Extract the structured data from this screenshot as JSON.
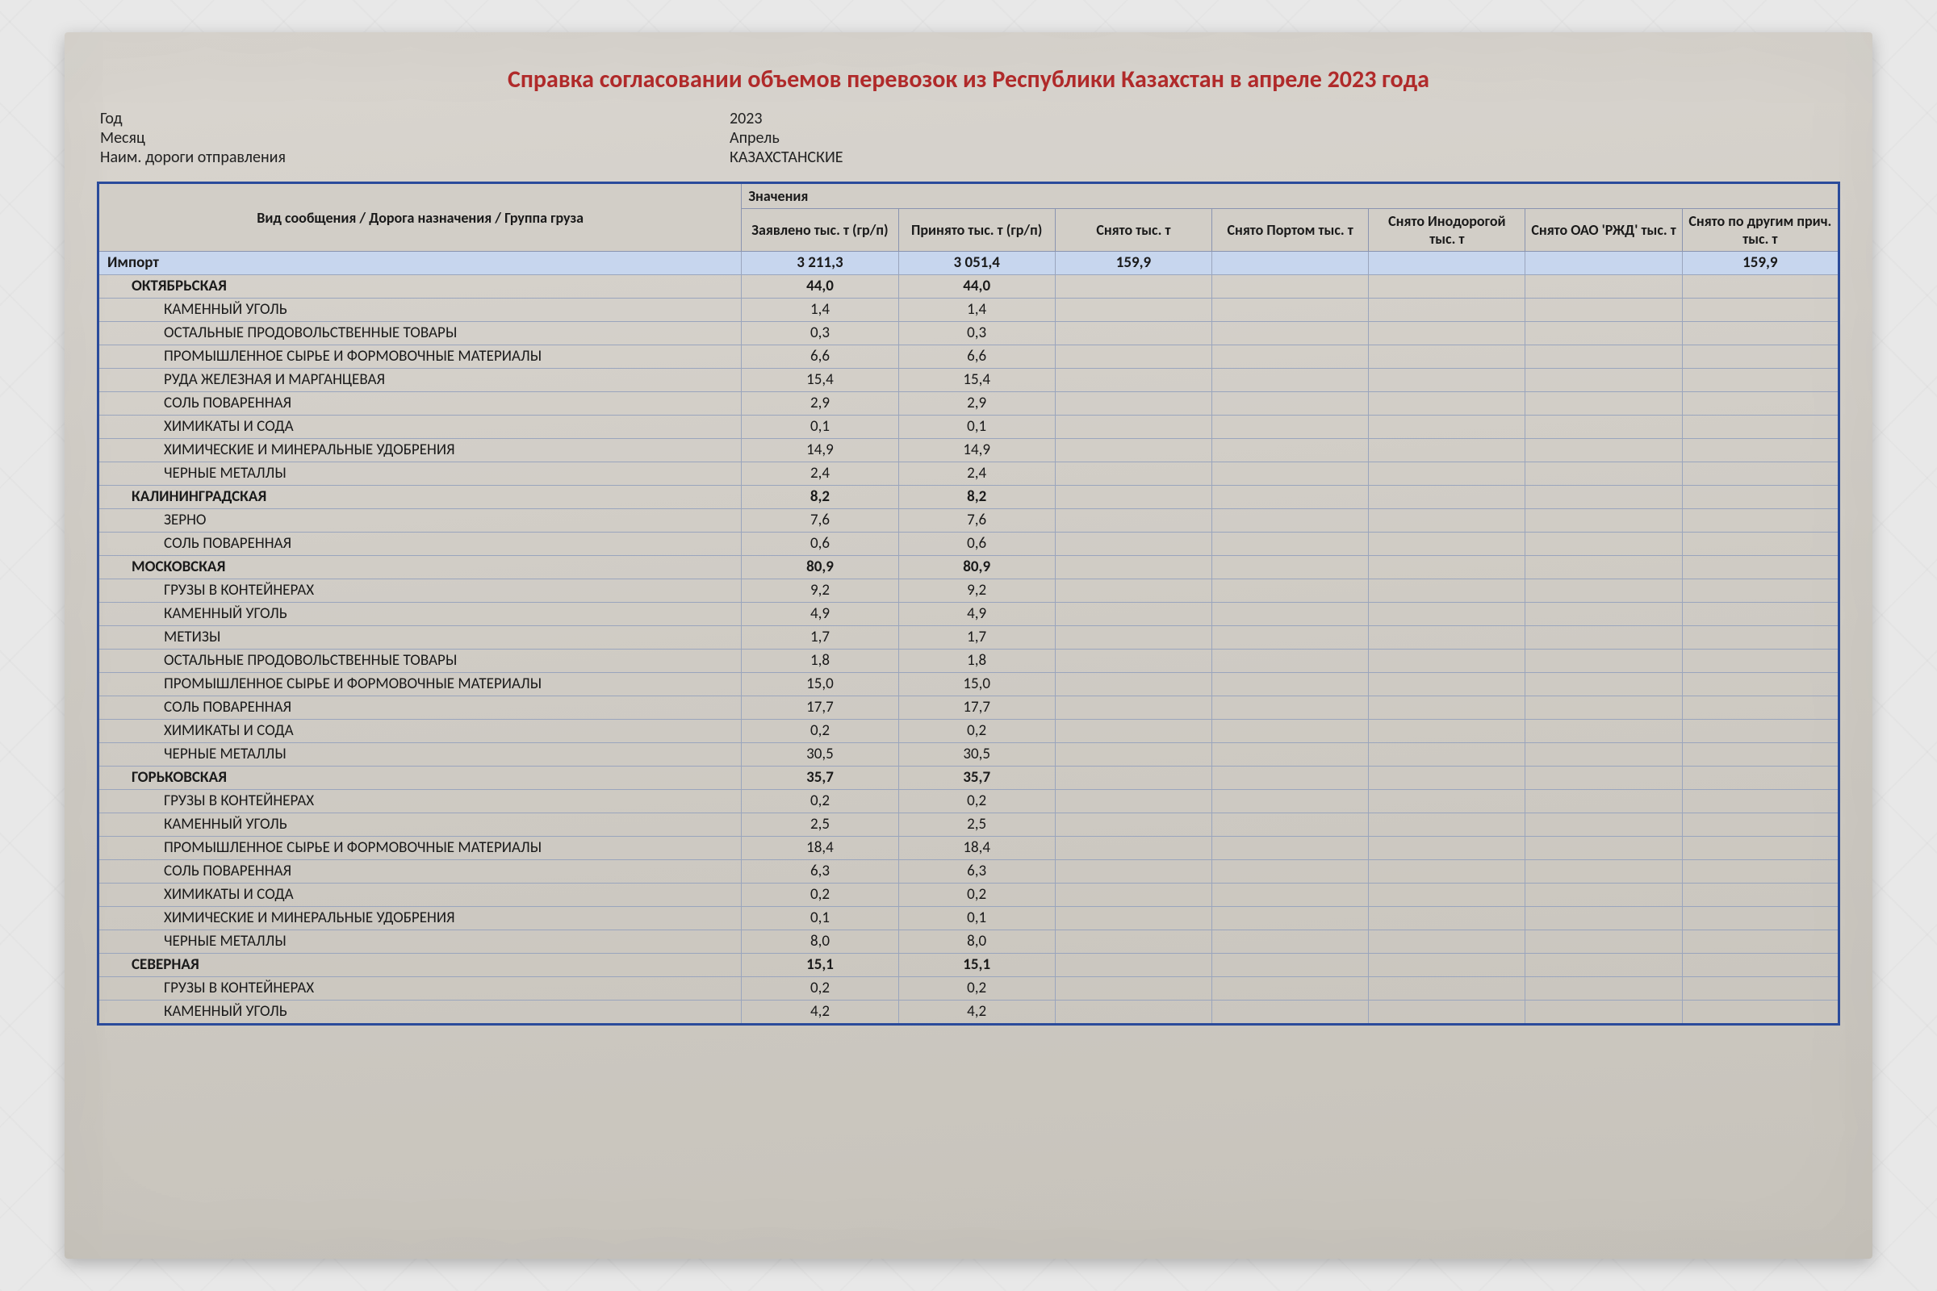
{
  "title": "Справка согласовании объемов перевозок из Республики Казахстан в апреле 2023 года",
  "meta": {
    "year_label": "Год",
    "year_value": "2023",
    "month_label": "Месяц",
    "month_value": "Апрель",
    "road_label": "Наим. дороги отправления",
    "road_value": "КАЗАХСТАНСКИЕ"
  },
  "table": {
    "colors": {
      "border_outer": "#2a4b9b",
      "border_cell": "#9aa5bd",
      "highlight_row_bg": "#c7d6ee",
      "title_color": "#b02a2a",
      "sheet_bg_top": "#d9d5cf",
      "sheet_bg_bottom": "#c7c3bb"
    },
    "header": {
      "row_label": "Вид сообщения / Дорога назначения / Группа груза",
      "values_label": "Значения",
      "cols": [
        "Заявлено тыс. т (гр/п)",
        "Принято тыс. т (гр/п)",
        "Снято тыс. т",
        "Снято Портом тыс. т",
        "Снято Инодорогой тыс. т",
        "Снято ОАО 'РЖД' тыс. т",
        "Снято по другим прич. тыс. т"
      ]
    },
    "rows": [
      {
        "level": 0,
        "name": "Импорт",
        "v": [
          "3 211,3",
          "3 051,4",
          "159,9",
          "",
          "",
          "",
          "159,9"
        ]
      },
      {
        "level": 1,
        "name": "ОКТЯБРЬСКАЯ",
        "v": [
          "44,0",
          "44,0",
          "",
          "",
          "",
          "",
          ""
        ]
      },
      {
        "level": 2,
        "name": "КАМЕННЫЙ УГОЛЬ",
        "v": [
          "1,4",
          "1,4",
          "",
          "",
          "",
          "",
          ""
        ]
      },
      {
        "level": 2,
        "name": "ОСТАЛЬНЫЕ ПРОДОВОЛЬСТВЕННЫЕ ТОВАРЫ",
        "v": [
          "0,3",
          "0,3",
          "",
          "",
          "",
          "",
          ""
        ]
      },
      {
        "level": 2,
        "name": "ПРОМЫШЛЕННОЕ СЫРЬЕ И ФОРМОВОЧНЫЕ МАТЕРИАЛЫ",
        "v": [
          "6,6",
          "6,6",
          "",
          "",
          "",
          "",
          ""
        ]
      },
      {
        "level": 2,
        "name": "РУДА ЖЕЛЕЗНАЯ И МАРГАНЦЕВАЯ",
        "v": [
          "15,4",
          "15,4",
          "",
          "",
          "",
          "",
          ""
        ]
      },
      {
        "level": 2,
        "name": "СОЛЬ ПОВАРЕННАЯ",
        "v": [
          "2,9",
          "2,9",
          "",
          "",
          "",
          "",
          ""
        ]
      },
      {
        "level": 2,
        "name": "ХИМИКАТЫ И СОДА",
        "v": [
          "0,1",
          "0,1",
          "",
          "",
          "",
          "",
          ""
        ]
      },
      {
        "level": 2,
        "name": "ХИМИЧЕСКИЕ И МИНЕРАЛЬНЫЕ УДОБРЕНИЯ",
        "v": [
          "14,9",
          "14,9",
          "",
          "",
          "",
          "",
          ""
        ]
      },
      {
        "level": 2,
        "name": "ЧЕРНЫЕ МЕТАЛЛЫ",
        "v": [
          "2,4",
          "2,4",
          "",
          "",
          "",
          "",
          ""
        ]
      },
      {
        "level": 1,
        "name": "КАЛИНИНГРАДСКАЯ",
        "v": [
          "8,2",
          "8,2",
          "",
          "",
          "",
          "",
          ""
        ]
      },
      {
        "level": 2,
        "name": "ЗЕРНО",
        "v": [
          "7,6",
          "7,6",
          "",
          "",
          "",
          "",
          ""
        ]
      },
      {
        "level": 2,
        "name": "СОЛЬ ПОВАРЕННАЯ",
        "v": [
          "0,6",
          "0,6",
          "",
          "",
          "",
          "",
          ""
        ]
      },
      {
        "level": 1,
        "name": "МОСКОВСКАЯ",
        "v": [
          "80,9",
          "80,9",
          "",
          "",
          "",
          "",
          ""
        ]
      },
      {
        "level": 2,
        "name": "ГРУЗЫ В КОНТЕЙНЕРАХ",
        "v": [
          "9,2",
          "9,2",
          "",
          "",
          "",
          "",
          ""
        ]
      },
      {
        "level": 2,
        "name": "КАМЕННЫЙ УГОЛЬ",
        "v": [
          "4,9",
          "4,9",
          "",
          "",
          "",
          "",
          ""
        ]
      },
      {
        "level": 2,
        "name": "МЕТИЗЫ",
        "v": [
          "1,7",
          "1,7",
          "",
          "",
          "",
          "",
          ""
        ]
      },
      {
        "level": 2,
        "name": "ОСТАЛЬНЫЕ ПРОДОВОЛЬСТВЕННЫЕ ТОВАРЫ",
        "v": [
          "1,8",
          "1,8",
          "",
          "",
          "",
          "",
          ""
        ]
      },
      {
        "level": 2,
        "name": "ПРОМЫШЛЕННОЕ СЫРЬЕ И ФОРМОВОЧНЫЕ МАТЕРИАЛЫ",
        "v": [
          "15,0",
          "15,0",
          "",
          "",
          "",
          "",
          ""
        ]
      },
      {
        "level": 2,
        "name": "СОЛЬ ПОВАРЕННАЯ",
        "v": [
          "17,7",
          "17,7",
          "",
          "",
          "",
          "",
          ""
        ]
      },
      {
        "level": 2,
        "name": "ХИМИКАТЫ И СОДА",
        "v": [
          "0,2",
          "0,2",
          "",
          "",
          "",
          "",
          ""
        ]
      },
      {
        "level": 2,
        "name": "ЧЕРНЫЕ МЕТАЛЛЫ",
        "v": [
          "30,5",
          "30,5",
          "",
          "",
          "",
          "",
          ""
        ]
      },
      {
        "level": 1,
        "name": "ГОРЬКОВСКАЯ",
        "v": [
          "35,7",
          "35,7",
          "",
          "",
          "",
          "",
          ""
        ]
      },
      {
        "level": 2,
        "name": "ГРУЗЫ В КОНТЕЙНЕРАХ",
        "v": [
          "0,2",
          "0,2",
          "",
          "",
          "",
          "",
          ""
        ]
      },
      {
        "level": 2,
        "name": "КАМЕННЫЙ УГОЛЬ",
        "v": [
          "2,5",
          "2,5",
          "",
          "",
          "",
          "",
          ""
        ]
      },
      {
        "level": 2,
        "name": "ПРОМЫШЛЕННОЕ СЫРЬЕ И ФОРМОВОЧНЫЕ МАТЕРИАЛЫ",
        "v": [
          "18,4",
          "18,4",
          "",
          "",
          "",
          "",
          ""
        ]
      },
      {
        "level": 2,
        "name": "СОЛЬ ПОВАРЕННАЯ",
        "v": [
          "6,3",
          "6,3",
          "",
          "",
          "",
          "",
          ""
        ]
      },
      {
        "level": 2,
        "name": "ХИМИКАТЫ И СОДА",
        "v": [
          "0,2",
          "0,2",
          "",
          "",
          "",
          "",
          ""
        ]
      },
      {
        "level": 2,
        "name": "ХИМИЧЕСКИЕ И МИНЕРАЛЬНЫЕ УДОБРЕНИЯ",
        "v": [
          "0,1",
          "0,1",
          "",
          "",
          "",
          "",
          ""
        ]
      },
      {
        "level": 2,
        "name": "ЧЕРНЫЕ МЕТАЛЛЫ",
        "v": [
          "8,0",
          "8,0",
          "",
          "",
          "",
          "",
          ""
        ]
      },
      {
        "level": 1,
        "name": "СЕВЕРНАЯ",
        "v": [
          "15,1",
          "15,1",
          "",
          "",
          "",
          "",
          ""
        ]
      },
      {
        "level": 2,
        "name": "ГРУЗЫ В КОНТЕЙНЕРАХ",
        "v": [
          "0,2",
          "0,2",
          "",
          "",
          "",
          "",
          ""
        ]
      },
      {
        "level": 2,
        "name": "КАМЕННЫЙ УГОЛЬ",
        "v": [
          "4,2",
          "4,2",
          "",
          "",
          "",
          "",
          ""
        ]
      }
    ]
  }
}
